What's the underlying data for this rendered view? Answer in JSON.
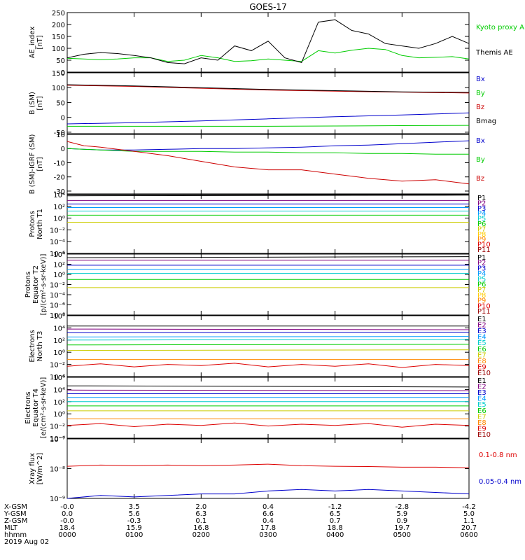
{
  "title": "GOES-17",
  "chart_data": [
    {
      "type": "line",
      "ylabel": [
        "AE_index",
        "[nT]"
      ],
      "ylim": [
        0,
        250
      ],
      "yticks": [
        "250",
        "200",
        "150",
        "100",
        "50",
        "0"
      ],
      "yticks_values": [
        250,
        200,
        150,
        100,
        50,
        0
      ],
      "series": [
        {
          "name": "Kyoto proxy AE",
          "color": "#00cc00",
          "x": [
            0,
            0.25,
            0.5,
            0.75,
            1,
            1.25,
            1.5,
            1.75,
            2,
            2.25,
            2.5,
            2.75,
            3,
            3.25,
            3.5,
            3.75,
            4,
            4.25,
            4.5,
            4.75,
            5,
            5.25,
            5.5,
            5.75,
            6
          ],
          "values": [
            58,
            55,
            52,
            55,
            60,
            60,
            45,
            50,
            70,
            60,
            45,
            48,
            55,
            50,
            45,
            90,
            80,
            92,
            100,
            95,
            70,
            60,
            62,
            65,
            55
          ]
        },
        {
          "name": "Themis AE",
          "color": "#000000",
          "x": [
            0,
            0.25,
            0.5,
            0.75,
            1,
            1.25,
            1.5,
            1.75,
            2,
            2.25,
            2.5,
            2.75,
            3,
            3.25,
            3.5,
            3.75,
            4,
            4.25,
            4.5,
            4.75,
            5,
            5.25,
            5.5,
            5.75,
            6
          ],
          "values": [
            60,
            75,
            82,
            78,
            70,
            60,
            40,
            35,
            60,
            50,
            110,
            90,
            130,
            60,
            40,
            210,
            220,
            175,
            160,
            120,
            110,
            100,
            120,
            150,
            120
          ]
        }
      ]
    },
    {
      "type": "line",
      "ylabel": [
        "B (SM)",
        "[nT]"
      ],
      "ylim": [
        -55,
        150
      ],
      "yticks": [
        "150",
        "100",
        "50",
        "0",
        "-50"
      ],
      "yticks_values": [
        150,
        100,
        50,
        0,
        -50
      ],
      "series": [
        {
          "name": "Bx",
          "color": "#0000cc",
          "x": [
            0,
            1,
            2,
            3,
            4,
            5,
            6
          ],
          "values": [
            -22,
            -18,
            -12,
            -5,
            2,
            8,
            15
          ]
        },
        {
          "name": "By",
          "color": "#00cc00",
          "x": [
            0,
            1,
            2,
            3,
            4,
            5,
            6
          ],
          "values": [
            -30,
            -30,
            -30,
            -30,
            -29,
            -28,
            -27
          ]
        },
        {
          "name": "Bz",
          "color": "#cc0000",
          "x": [
            0,
            1,
            2,
            3,
            4,
            5,
            6
          ],
          "values": [
            108,
            104,
            98,
            92,
            88,
            85,
            82
          ]
        },
        {
          "name": "Bmag",
          "color": "#000000",
          "x": [
            0,
            1,
            2,
            3,
            4,
            5,
            6
          ],
          "values": [
            110,
            106,
            100,
            94,
            90,
            86,
            84
          ]
        }
      ]
    },
    {
      "type": "line",
      "ylabel": [
        "B (SM)-IGRF (SM)",
        "[nT]"
      ],
      "ylim": [
        -32,
        10
      ],
      "yticks": [
        "10",
        "0",
        "-10",
        "-20",
        "-30"
      ],
      "yticks_values": [
        10,
        0,
        -10,
        -20,
        -30
      ],
      "series": [
        {
          "name": "Bx",
          "color": "#0000cc",
          "x": [
            0,
            0.5,
            1,
            1.5,
            2,
            2.5,
            3,
            3.5,
            4,
            4.5,
            5,
            5.5,
            6
          ],
          "values": [
            0,
            -1,
            -1,
            -0.5,
            0,
            0,
            0.5,
            1,
            2,
            2.5,
            3.5,
            4.5,
            5.5
          ]
        },
        {
          "name": "By",
          "color": "#00cc00",
          "x": [
            0,
            0.5,
            1,
            1.5,
            2,
            2.5,
            3,
            3.5,
            4,
            4.5,
            5,
            5.5,
            6
          ],
          "values": [
            0,
            -1,
            -2,
            -2,
            -2,
            -2.5,
            -2.5,
            -3,
            -3,
            -3.5,
            -3.5,
            -4,
            -4
          ]
        },
        {
          "name": "Bz",
          "color": "#cc0000",
          "x": [
            0,
            0.25,
            0.5,
            1,
            1.5,
            2,
            2.5,
            3,
            3.5,
            4,
            4.5,
            5,
            5.5,
            6
          ],
          "values": [
            5,
            2,
            1,
            -2,
            -5,
            -9,
            -13,
            -15,
            -15,
            -18,
            -21,
            -23,
            -22,
            -25
          ]
        }
      ]
    },
    {
      "type": "line",
      "scale": "log",
      "ylabel": [
        "Protons",
        "North T1"
      ],
      "ylim": [
        -6,
        4
      ],
      "yticks": [
        "10⁴",
        "10²",
        "10⁰",
        "10⁻²",
        "10⁻⁴",
        "10⁻⁶"
      ],
      "yticks_values": [
        4,
        2,
        0,
        -2,
        -4,
        -6
      ],
      "series": [
        {
          "name": "P1",
          "color": "#000000",
          "x": [
            0,
            6
          ],
          "values": [
            3.8,
            3.9
          ]
        },
        {
          "name": "P2",
          "color": "#800080",
          "x": [
            0,
            6
          ],
          "values": [
            3.0,
            3.0
          ]
        },
        {
          "name": "P3",
          "color": "#0000cc",
          "x": [
            0,
            6
          ],
          "values": [
            2.4,
            2.4
          ]
        },
        {
          "name": "P4",
          "color": "#0099ff",
          "x": [
            0,
            6
          ],
          "values": [
            1.8,
            1.8
          ]
        },
        {
          "name": "P5",
          "color": "#00cccc",
          "x": [
            0,
            6
          ],
          "values": [
            1.2,
            1.2
          ]
        },
        {
          "name": "P6",
          "color": "#00cc00",
          "x": [
            0,
            6
          ],
          "values": [
            0.5,
            0.5
          ]
        },
        {
          "name": "P7",
          "color": "#cccc00",
          "x": [
            0,
            6
          ],
          "values": [
            -0.7,
            -0.7
          ]
        },
        {
          "name": "P8",
          "color": "#ffcc00",
          "x": [],
          "values": []
        },
        {
          "name": "P9",
          "color": "#ff8800",
          "x": [],
          "values": []
        },
        {
          "name": "P10",
          "color": "#dd0000",
          "x": [],
          "values": []
        },
        {
          "name": "P11",
          "color": "#990000",
          "x": [],
          "values": []
        }
      ]
    },
    {
      "type": "line",
      "scale": "log",
      "ylabel": [
        "Protons",
        "Equator T2",
        "[p/(cm²-s-sr-keV)]"
      ],
      "ylim": [
        -8,
        4
      ],
      "yticks": [
        "10⁴",
        "10²",
        "10⁰",
        "10⁻²",
        "10⁻⁴",
        "10⁻⁶",
        "10⁻⁸"
      ],
      "yticks_values": [
        4,
        2,
        0,
        -2,
        -4,
        -6,
        -8
      ],
      "series": [
        {
          "name": "P1",
          "color": "#000000",
          "x": [
            0,
            6
          ],
          "values": [
            3.3,
            3.5
          ]
        },
        {
          "name": "P2",
          "color": "#800080",
          "x": [
            0,
            6
          ],
          "values": [
            2.8,
            2.8
          ]
        },
        {
          "name": "P3",
          "color": "#0000cc",
          "x": [
            0,
            6
          ],
          "values": [
            1.8,
            1.8
          ]
        },
        {
          "name": "P4",
          "color": "#0099ff",
          "x": [
            0,
            6
          ],
          "values": [
            1.0,
            1.0
          ]
        },
        {
          "name": "P5",
          "color": "#00cccc",
          "x": [
            0,
            6
          ],
          "values": [
            0.2,
            0.2
          ]
        },
        {
          "name": "P6",
          "color": "#00cc00",
          "x": [
            0,
            6
          ],
          "values": [
            -1.0,
            -1.0
          ]
        },
        {
          "name": "P7",
          "color": "#cccc00",
          "x": [
            0,
            6
          ],
          "values": [
            -2.6,
            -2.6
          ]
        },
        {
          "name": "P8",
          "color": "#ffcc00",
          "x": [],
          "values": []
        },
        {
          "name": "P9",
          "color": "#ff8800",
          "x": [],
          "values": []
        },
        {
          "name": "P10",
          "color": "#dd0000",
          "x": [],
          "values": []
        },
        {
          "name": "P11",
          "color": "#990000",
          "x": [],
          "values": []
        }
      ]
    },
    {
      "type": "line",
      "scale": "log",
      "ylabel": [
        "Electrons",
        "North T3"
      ],
      "ylim": [
        -4,
        6
      ],
      "yticks": [
        "10⁶",
        "10⁴",
        "10²",
        "10⁰",
        "10⁻²",
        "10⁻⁴"
      ],
      "yticks_values": [
        6,
        4,
        2,
        0,
        -2,
        -4
      ],
      "series": [
        {
          "name": "E1",
          "color": "#000000",
          "x": [
            0,
            6
          ],
          "values": [
            4.3,
            4.3
          ]
        },
        {
          "name": "E2",
          "color": "#800080",
          "x": [
            0,
            6
          ],
          "values": [
            3.8,
            3.7
          ]
        },
        {
          "name": "E3",
          "color": "#0000cc",
          "x": [
            0,
            6
          ],
          "values": [
            3.2,
            3.3
          ]
        },
        {
          "name": "E4",
          "color": "#0099ff",
          "x": [
            0,
            6
          ],
          "values": [
            2.5,
            2.6
          ]
        },
        {
          "name": "E5",
          "color": "#00cccc",
          "x": [
            0,
            6
          ],
          "values": [
            2.0,
            2.1
          ]
        },
        {
          "name": "E6",
          "color": "#00cc00",
          "x": [
            0,
            6
          ],
          "values": [
            1.2,
            1.3
          ]
        },
        {
          "name": "E7",
          "color": "#cccc00",
          "x": [
            0,
            6
          ],
          "values": [
            0.3,
            0.4
          ]
        },
        {
          "name": "E8",
          "color": "#ff8800",
          "x": [
            0,
            6
          ],
          "values": [
            -1.2,
            -1.2
          ]
        },
        {
          "name": "E9",
          "color": "#dd0000",
          "x": [
            0,
            0.5,
            1,
            1.5,
            2,
            2.5,
            3,
            3.5,
            4,
            4.5,
            5,
            5.5,
            6
          ],
          "values": [
            -2.3,
            -1.9,
            -2.4,
            -2.0,
            -2.2,
            -1.8,
            -2.4,
            -2.0,
            -2.3,
            -1.9,
            -2.5,
            -2.0,
            -2.2
          ]
        },
        {
          "name": "E10",
          "color": "#990000",
          "x": [],
          "values": []
        }
      ]
    },
    {
      "type": "line",
      "scale": "log",
      "ylabel": [
        "Electrons",
        "Equator T4",
        "[e/(cm²-s-sr-keV)]"
      ],
      "ylim": [
        -4,
        6
      ],
      "yticks": [
        "10⁶",
        "10⁴",
        "10²",
        "10⁰",
        "10⁻²",
        "10⁻⁴"
      ],
      "yticks_values": [
        6,
        4,
        2,
        0,
        -2,
        -4
      ],
      "series": [
        {
          "name": "E1",
          "color": "#000000",
          "x": [
            0,
            6
          ],
          "values": [
            4.6,
            4.4
          ]
        },
        {
          "name": "E2",
          "color": "#800080",
          "x": [
            0,
            6
          ],
          "values": [
            3.9,
            3.8
          ]
        },
        {
          "name": "E3",
          "color": "#0000cc",
          "x": [
            0,
            6
          ],
          "values": [
            3.3,
            3.3
          ]
        },
        {
          "name": "E4",
          "color": "#0099ff",
          "x": [
            0,
            6
          ],
          "values": [
            2.7,
            2.7
          ]
        },
        {
          "name": "E5",
          "color": "#00cccc",
          "x": [
            0,
            6
          ],
          "values": [
            2.0,
            2.0
          ]
        },
        {
          "name": "E6",
          "color": "#00cc00",
          "x": [
            0,
            6
          ],
          "values": [
            1.3,
            1.3
          ]
        },
        {
          "name": "E7",
          "color": "#cccc00",
          "x": [
            0,
            6
          ],
          "values": [
            0.5,
            0.5
          ]
        },
        {
          "name": "E8",
          "color": "#ff8800",
          "x": [
            0,
            6
          ],
          "values": [
            -0.8,
            -0.8
          ]
        },
        {
          "name": "E9",
          "color": "#dd0000",
          "x": [
            0,
            0.5,
            1,
            1.5,
            2,
            2.5,
            3,
            3.5,
            4,
            4.5,
            5,
            5.5,
            6
          ],
          "values": [
            -1.9,
            -1.6,
            -2.1,
            -1.7,
            -1.9,
            -1.5,
            -2.0,
            -1.7,
            -1.9,
            -1.6,
            -2.2,
            -1.7,
            -1.9
          ]
        },
        {
          "name": "E10",
          "color": "#990000",
          "x": [],
          "values": []
        }
      ]
    },
    {
      "type": "line",
      "scale": "log",
      "ylabel": [
        "Xray flux",
        "[W/m^2]"
      ],
      "ylim": [
        -9,
        -7
      ],
      "yticks": [
        "10⁻⁷",
        "10⁻⁸",
        "10⁻⁹"
      ],
      "yticks_values": [
        -7,
        -8,
        -9
      ],
      "series": [
        {
          "name": "0.1-0.8 nm",
          "color": "#dd0000",
          "x": [
            0,
            0.5,
            1,
            1.5,
            2,
            2.5,
            3,
            3.5,
            4,
            4.5,
            5,
            5.5,
            6
          ],
          "values": [
            -7.92,
            -7.88,
            -7.9,
            -7.88,
            -7.9,
            -7.88,
            -7.85,
            -7.9,
            -7.92,
            -7.93,
            -7.95,
            -7.95,
            -7.97
          ]
        },
        {
          "name": "0.05-0.4 nm",
          "color": "#0000cc",
          "x": [
            0,
            0.5,
            1,
            1.5,
            2,
            2.5,
            3,
            3.5,
            4,
            4.5,
            5,
            5.5,
            6
          ],
          "values": [
            -9.0,
            -8.9,
            -8.95,
            -8.9,
            -8.85,
            -8.85,
            -8.75,
            -8.7,
            -8.75,
            -8.7,
            -8.75,
            -8.8,
            -8.85
          ]
        }
      ]
    }
  ],
  "xaxis": {
    "x": [
      0,
      1,
      2,
      3,
      4,
      5,
      6
    ],
    "rows": [
      {
        "label": "X-GSM",
        "values": [
          "-0.0",
          "3.5",
          "2.0",
          "0.4",
          "-1.2",
          "-2.8",
          "-4.2"
        ]
      },
      {
        "label": "Y-GSM",
        "values": [
          "0.0",
          "5.6",
          "6.3",
          "6.6",
          "6.5",
          "5.9",
          "5.0"
        ]
      },
      {
        "label": "Z-GSM",
        "values": [
          "-0.0",
          "-0.3",
          "0.1",
          "0.4",
          "0.7",
          "0.9",
          "1.1"
        ]
      },
      {
        "label": "MLT",
        "values": [
          "18.4",
          "15.9",
          "16.8",
          "17.8",
          "18.8",
          "19.7",
          "20.7"
        ]
      },
      {
        "label": "hhmm",
        "values": [
          "0000",
          "0100",
          "0200",
          "0300",
          "0400",
          "0500",
          "0600"
        ]
      }
    ],
    "date": "2019 Aug 02"
  }
}
